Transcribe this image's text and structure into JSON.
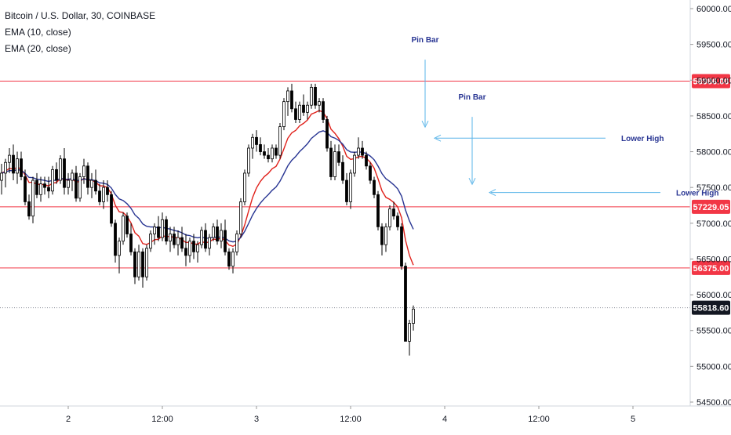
{
  "chart_data": {
    "type": "candlestick",
    "symbol": "Bitcoin / U.S. Dollar, 30, COINBASE",
    "indicators": [
      "EMA (10, close)",
      "EMA (20, close)"
    ],
    "ylim": [
      54500,
      60000
    ],
    "y_ticks": [
      54500,
      55000,
      55500,
      56000,
      56500,
      57000,
      57500,
      58000,
      58500,
      59000,
      59500,
      60000
    ],
    "y_tick_labels": [
      "54500.00",
      "55000.00",
      "55500.00",
      "56000.00",
      "56500.00",
      "57000.00",
      "57500.00",
      "58000.00",
      "58500.00",
      "59000.00",
      "59500.00",
      "60000.00"
    ],
    "x_tick_labels": [
      "2",
      "12:00",
      "3",
      "12:00",
      "4",
      "12:00",
      "5"
    ],
    "x_tick_bars": [
      17,
      41,
      65,
      89,
      113,
      137,
      161
    ],
    "horizontal_levels": [
      {
        "value": 58986,
        "label": "58986.00",
        "color": "#f23645"
      },
      {
        "value": 57229.05,
        "label": "57229.05",
        "color": "#f23645"
      },
      {
        "value": 56375,
        "label": "56375.00",
        "color": "#f23645"
      }
    ],
    "last_price": {
      "value": 55818.6,
      "label": "55818.60",
      "color": "#131722"
    },
    "annotations": [
      {
        "text": "Pin Bar",
        "bar": 108,
        "value": 58300,
        "type": "vertical-arrow"
      },
      {
        "text": "Pin Bar",
        "bar": 120,
        "value": 57500,
        "type": "vertical-arrow"
      },
      {
        "text": "Lower High",
        "bar": 110,
        "value": 58190,
        "type": "horizontal-arrow"
      },
      {
        "text": "Lower High",
        "bar": 124,
        "value": 57430,
        "type": "horizontal-arrow"
      }
    ],
    "colors": {
      "up": "#ffffff",
      "down": "#000000",
      "wick": "#000000",
      "ema10": "#e0211b",
      "ema20": "#283593",
      "annotation": "#5ab4e8",
      "annotation_text": "#283593"
    },
    "candles": [
      [
        57600,
        57830,
        57400,
        57700
      ],
      [
        57700,
        57900,
        57500,
        57850
      ],
      [
        57850,
        58050,
        57700,
        57950
      ],
      [
        57950,
        58100,
        57600,
        57700
      ],
      [
        57700,
        58000,
        57550,
        57900
      ],
      [
        57900,
        58000,
        57600,
        57650
      ],
      [
        57650,
        57750,
        57250,
        57300
      ],
      [
        57300,
        57400,
        57050,
        57100
      ],
      [
        57100,
        57650,
        57000,
        57600
      ],
      [
        57600,
        57700,
        57350,
        57400
      ],
      [
        57400,
        57650,
        57300,
        57550
      ],
      [
        57550,
        57650,
        57400,
        57500
      ],
      [
        57500,
        57650,
        57350,
        57450
      ],
      [
        57450,
        57800,
        57400,
        57750
      ],
      [
        57750,
        57850,
        57550,
        57600
      ],
      [
        57600,
        57950,
        57550,
        57900
      ],
      [
        57900,
        58050,
        57400,
        57500
      ],
      [
        57500,
        57700,
        57400,
        57600
      ],
      [
        57600,
        57750,
        57450,
        57700
      ],
      [
        57700,
        57800,
        57300,
        57350
      ],
      [
        57350,
        57700,
        57300,
        57650
      ],
      [
        57650,
        57900,
        57550,
        57800
      ],
      [
        57800,
        57850,
        57400,
        57500
      ],
      [
        57500,
        57700,
        57350,
        57600
      ],
      [
        57600,
        57750,
        57400,
        57450
      ],
      [
        57450,
        57550,
        57250,
        57300
      ],
      [
        57300,
        57600,
        57200,
        57500
      ],
      [
        57500,
        57600,
        57300,
        57400
      ],
      [
        57400,
        57450,
        56950,
        57000
      ],
      [
        57000,
        57050,
        56450,
        56550
      ],
      [
        56550,
        56800,
        56300,
        56750
      ],
      [
        56750,
        57150,
        56700,
        57100
      ],
      [
        57100,
        57150,
        56800,
        56850
      ],
      [
        56850,
        57000,
        56550,
        56600
      ],
      [
        56600,
        56650,
        56150,
        56250
      ],
      [
        56250,
        56700,
        56200,
        56600
      ],
      [
        56600,
        56650,
        56100,
        56250
      ],
      [
        56250,
        56700,
        56200,
        56650
      ],
      [
        56650,
        56900,
        56600,
        56850
      ],
      [
        56850,
        57000,
        56700,
        56950
      ],
      [
        56950,
        57100,
        56750,
        56800
      ],
      [
        56800,
        57150,
        56750,
        57050
      ],
      [
        57050,
        57100,
        56700,
        56750
      ],
      [
        56750,
        56950,
        56600,
        56850
      ],
      [
        56850,
        56950,
        56650,
        56700
      ],
      [
        56700,
        56900,
        56550,
        56800
      ],
      [
        56800,
        56950,
        56600,
        56650
      ],
      [
        56650,
        56850,
        56400,
        56550
      ],
      [
        56550,
        56800,
        56450,
        56750
      ],
      [
        56750,
        56850,
        56500,
        56600
      ],
      [
        56600,
        56750,
        56450,
        56700
      ],
      [
        56700,
        56950,
        56650,
        56900
      ],
      [
        56900,
        57000,
        56600,
        56650
      ],
      [
        56650,
        56850,
        56550,
        56800
      ],
      [
        56800,
        57000,
        56750,
        56950
      ],
      [
        56950,
        57050,
        56700,
        56750
      ],
      [
        56750,
        57000,
        56650,
        56900
      ],
      [
        56900,
        57050,
        56550,
        56600
      ],
      [
        56600,
        56650,
        56350,
        56400
      ],
      [
        56400,
        56650,
        56300,
        56600
      ],
      [
        56600,
        56900,
        56550,
        56850
      ],
      [
        56850,
        57350,
        56800,
        57300
      ],
      [
        57300,
        57750,
        57250,
        57700
      ],
      [
        57700,
        58100,
        57650,
        58050
      ],
      [
        58050,
        58250,
        57900,
        58200
      ],
      [
        58200,
        58300,
        58000,
        58100
      ],
      [
        58100,
        58200,
        57950,
        58000
      ],
      [
        58000,
        58100,
        57900,
        57950
      ],
      [
        57950,
        58050,
        57850,
        57900
      ],
      [
        57900,
        58100,
        57850,
        58050
      ],
      [
        58050,
        58100,
        57900,
        57950
      ],
      [
        57950,
        58400,
        57900,
        58350
      ],
      [
        58350,
        58750,
        58300,
        58700
      ],
      [
        58700,
        58900,
        58500,
        58850
      ],
      [
        58850,
        58950,
        58550,
        58600
      ],
      [
        58600,
        58700,
        58400,
        58450
      ],
      [
        58450,
        58700,
        58400,
        58650
      ],
      [
        58650,
        58800,
        58500,
        58550
      ],
      [
        58550,
        58700,
        58450,
        58650
      ],
      [
        58650,
        58950,
        58600,
        58900
      ],
      [
        58900,
        58950,
        58600,
        58650
      ],
      [
        58650,
        58750,
        58550,
        58700
      ],
      [
        58700,
        58750,
        58400,
        58450
      ],
      [
        58450,
        58500,
        58000,
        58050
      ],
      [
        58050,
        58150,
        57600,
        57650
      ],
      [
        57650,
        58100,
        57600,
        58000
      ],
      [
        58000,
        58100,
        57800,
        57850
      ],
      [
        57850,
        57950,
        57550,
        57600
      ],
      [
        57600,
        57700,
        57250,
        57300
      ],
      [
        57300,
        57750,
        57200,
        57700
      ],
      [
        57700,
        58000,
        57650,
        57950
      ],
      [
        57950,
        58200,
        57900,
        58050
      ],
      [
        58050,
        58150,
        57900,
        57950
      ],
      [
        57950,
        58000,
        57750,
        57800
      ],
      [
        57800,
        57850,
        57550,
        57600
      ],
      [
        57600,
        57650,
        57350,
        57400
      ],
      [
        57400,
        57450,
        56900,
        56950
      ],
      [
        56950,
        57000,
        56550,
        56700
      ],
      [
        56700,
        57000,
        56600,
        56950
      ],
      [
        56950,
        57250,
        56900,
        57200
      ],
      [
        57200,
        57300,
        57050,
        57100
      ],
      [
        57100,
        57150,
        56900,
        56950
      ],
      [
        56950,
        57000,
        56350,
        56400
      ],
      [
        56400,
        56450,
        55350,
        55350
      ],
      [
        55350,
        55650,
        55150,
        55600
      ],
      [
        55600,
        55850,
        55500,
        55800
      ]
    ]
  }
}
